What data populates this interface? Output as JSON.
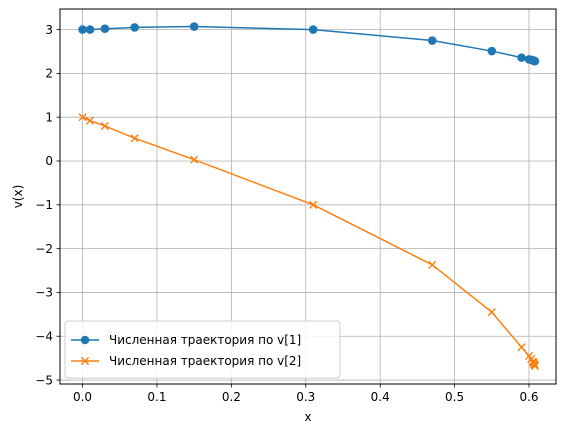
{
  "chart_data": {
    "type": "line",
    "xlabel": "x",
    "ylabel": "v(x)",
    "xlim": [
      -0.0303,
      0.6363
    ],
    "ylim": [
      -5.09,
      3.47
    ],
    "xticks": [
      0.0,
      0.1,
      0.2,
      0.3,
      0.4,
      0.5,
      0.6
    ],
    "xtick_labels": [
      "0.0",
      "0.1",
      "0.2",
      "0.3",
      "0.4",
      "0.5",
      "0.6"
    ],
    "yticks": [
      3,
      2,
      1,
      0,
      -1,
      -2,
      -3,
      -4,
      -5
    ],
    "ytick_labels": [
      "3",
      "2",
      "1",
      "0",
      "−1",
      "−2",
      "−3",
      "−4",
      "−5"
    ],
    "grid": true,
    "legend_position": "lower-left",
    "series": [
      {
        "name": "Численная траектория по v[1]",
        "color": "#1f77b4",
        "marker": "circle",
        "x": [
          0.0,
          0.01,
          0.03,
          0.07,
          0.15,
          0.31,
          0.47,
          0.55,
          0.59,
          0.6,
          0.603,
          0.605,
          0.606,
          0.607,
          0.6075,
          0.608
        ],
        "y": [
          3.0,
          3.0,
          3.02,
          3.05,
          3.07,
          3.0,
          2.75,
          2.51,
          2.36,
          2.32,
          2.31,
          2.3,
          2.29,
          2.29,
          2.28,
          2.28
        ]
      },
      {
        "name": "Численная траектория по v[2]",
        "color": "#ff7f0e",
        "marker": "x",
        "x": [
          0.0,
          0.01,
          0.03,
          0.07,
          0.15,
          0.31,
          0.47,
          0.55,
          0.59,
          0.6,
          0.603,
          0.605,
          0.606,
          0.607,
          0.6075,
          0.608
        ],
        "y": [
          1.0,
          0.92,
          0.8,
          0.52,
          0.03,
          -1.0,
          -2.37,
          -3.45,
          -4.25,
          -4.45,
          -4.52,
          -4.58,
          -4.6,
          -4.63,
          -4.65,
          -4.68
        ]
      }
    ]
  }
}
